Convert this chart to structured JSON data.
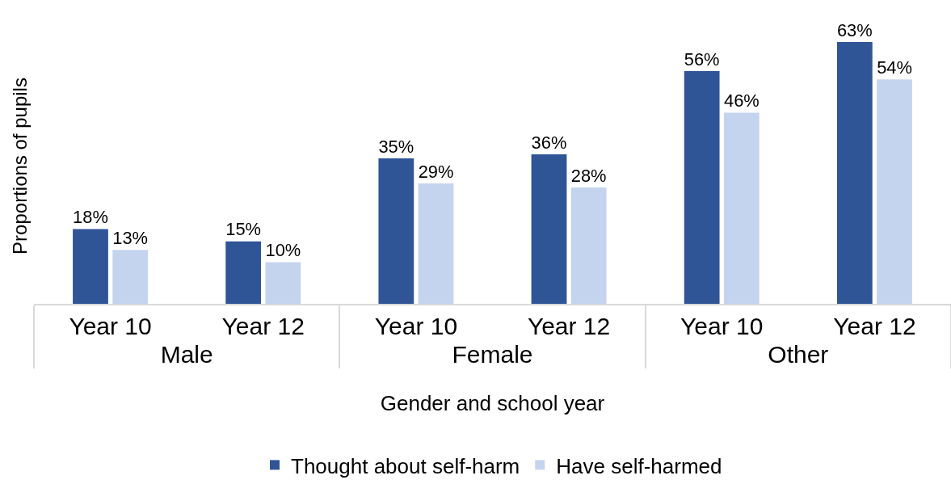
{
  "chart_data": {
    "type": "bar",
    "xlabel": "Gender and school year",
    "ylabel": "Proportions of pupils",
    "categories": [
      [
        "Male",
        "Year 10"
      ],
      [
        null,
        "Year 12"
      ],
      [
        "Female",
        "Year 10"
      ],
      [
        null,
        "Year 12"
      ],
      [
        "Other",
        "Year 10"
      ],
      [
        null,
        "Year 12"
      ]
    ],
    "series": [
      {
        "name": "Thought about self-harm",
        "color": "#2f5597",
        "values": [
          18,
          15,
          35,
          36,
          56,
          63
        ],
        "value_labels": [
          "18%",
          "15%",
          "35%",
          "36%",
          "56%",
          "63%"
        ]
      },
      {
        "name": "Have self-harmed",
        "color": "#c5d4ee",
        "values": [
          13,
          10,
          29,
          28,
          46,
          54
        ],
        "value_labels": [
          "13%",
          "10%",
          "29%",
          "28%",
          "46%",
          "54%"
        ]
      }
    ],
    "tick_labels": "x",
    "legend": "bottom"
  }
}
